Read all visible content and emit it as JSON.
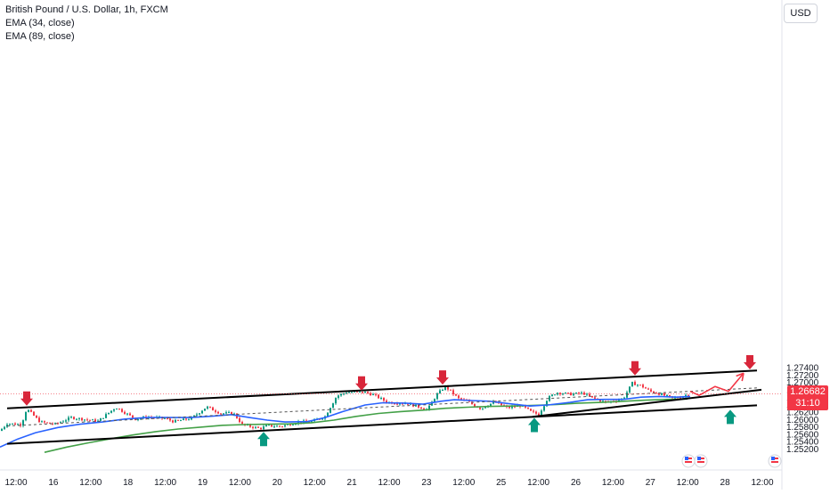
{
  "legend": {
    "title": "British Pound / U.S. Dollar, 1h, FXCM",
    "ema_fast": "EMA (34, close)",
    "ema_slow": "EMA (89, close)"
  },
  "currency_button": "USD",
  "last_price": {
    "value": "1.26682",
    "countdown": "31:10"
  },
  "colors": {
    "up": "#089981",
    "down": "#f23645",
    "ema_fast": "#2962ff",
    "ema_slow": "#43a047",
    "trendline": "#000000",
    "price_tag": "#f23645"
  },
  "chart_data": {
    "type": "candlestick",
    "symbol": "British Pound / U.S. Dollar",
    "timeframe": "1h",
    "x_ticks": [
      "12:00",
      "16",
      "12:00",
      "18",
      "12:00",
      "19",
      "12:00",
      "20",
      "12:00",
      "21",
      "12:00",
      "23",
      "12:00",
      "25",
      "12:00",
      "26",
      "12:00",
      "27",
      "12:00",
      "28",
      "12:00"
    ],
    "y_ticks": [
      1.252,
      1.254,
      1.256,
      1.258,
      1.26,
      1.262,
      1.264,
      1.266,
      1.268,
      1.27,
      1.272,
      1.274
    ],
    "y_tick_labels": [
      "1.25200",
      "1.25400",
      "1.25600",
      "1.25800",
      "1.26000",
      "1.26200",
      "1.26400",
      "1.26600",
      "1.26800",
      "1.27000",
      "1.27200",
      "1.27400"
    ],
    "ylim": [
      1.2513,
      1.2758
    ],
    "ema_fast_name": "EMA (34, close)",
    "ema_slow_name": "EMA (89, close)",
    "candle_path": [
      [
        0,
        1.2568
      ],
      [
        8,
        1.2588
      ],
      [
        24,
        1.2585
      ],
      [
        30,
        1.2628
      ],
      [
        45,
        1.2592
      ],
      [
        62,
        1.2586
      ],
      [
        80,
        1.2604
      ],
      [
        110,
        1.2594
      ],
      [
        130,
        1.2632
      ],
      [
        152,
        1.26
      ],
      [
        165,
        1.2605
      ],
      [
        185,
        1.2602
      ],
      [
        195,
        1.2593
      ],
      [
        215,
        1.2602
      ],
      [
        232,
        1.2633
      ],
      [
        248,
        1.2615
      ],
      [
        262,
        1.2616
      ],
      [
        272,
        1.2585
      ],
      [
        292,
        1.2574
      ],
      [
        300,
        1.2582
      ],
      [
        315,
        1.258
      ],
      [
        335,
        1.2592
      ],
      [
        350,
        1.2593
      ],
      [
        365,
        1.2607
      ],
      [
        378,
        1.2662
      ],
      [
        390,
        1.2673
      ],
      [
        410,
        1.2672
      ],
      [
        420,
        1.2665
      ],
      [
        435,
        1.2645
      ],
      [
        455,
        1.2643
      ],
      [
        472,
        1.2632
      ],
      [
        480,
        1.2625
      ],
      [
        490,
        1.2665
      ],
      [
        500,
        1.2688
      ],
      [
        515,
        1.2655
      ],
      [
        525,
        1.2647
      ],
      [
        540,
        1.2628
      ],
      [
        555,
        1.2646
      ],
      [
        570,
        1.263
      ],
      [
        585,
        1.2637
      ],
      [
        596,
        1.262
      ],
      [
        605,
        1.2612
      ],
      [
        615,
        1.2656
      ],
      [
        625,
        1.2672
      ],
      [
        640,
        1.2667
      ],
      [
        655,
        1.267
      ],
      [
        665,
        1.2657
      ],
      [
        680,
        1.2645
      ],
      [
        692,
        1.265
      ],
      [
        700,
        1.2656
      ],
      [
        710,
        1.2697
      ],
      [
        720,
        1.269
      ],
      [
        730,
        1.2675
      ],
      [
        742,
        1.2667
      ],
      [
        755,
        1.2656
      ],
      [
        765,
        1.2661
      ],
      [
        775,
        1.2668
      ]
    ],
    "ema_fast": [
      [
        0,
        1.2524
      ],
      [
        20,
        1.2546
      ],
      [
        40,
        1.2563
      ],
      [
        65,
        1.2577
      ],
      [
        90,
        1.2586
      ],
      [
        115,
        1.2592
      ],
      [
        140,
        1.26
      ],
      [
        165,
        1.2604
      ],
      [
        190,
        1.2604
      ],
      [
        215,
        1.2604
      ],
      [
        240,
        1.2608
      ],
      [
        260,
        1.2612
      ],
      [
        280,
        1.2604
      ],
      [
        300,
        1.2597
      ],
      [
        320,
        1.2592
      ],
      [
        345,
        1.2593
      ],
      [
        365,
        1.2604
      ],
      [
        385,
        1.262
      ],
      [
        410,
        1.2638
      ],
      [
        430,
        1.2644
      ],
      [
        455,
        1.2643
      ],
      [
        475,
        1.264
      ],
      [
        495,
        1.2648
      ],
      [
        510,
        1.2652
      ],
      [
        530,
        1.265
      ],
      [
        550,
        1.2648
      ],
      [
        570,
        1.2642
      ],
      [
        595,
        1.2635
      ],
      [
        615,
        1.2638
      ],
      [
        640,
        1.2645
      ],
      [
        660,
        1.2652
      ],
      [
        680,
        1.2653
      ],
      [
        700,
        1.2653
      ],
      [
        720,
        1.2659
      ],
      [
        740,
        1.2661
      ],
      [
        760,
        1.2659
      ],
      [
        775,
        1.2661
      ]
    ],
    "ema_slow": [
      [
        50,
        1.251
      ],
      [
        75,
        1.2524
      ],
      [
        100,
        1.2536
      ],
      [
        125,
        1.2547
      ],
      [
        150,
        1.2557
      ],
      [
        175,
        1.2566
      ],
      [
        200,
        1.2573
      ],
      [
        225,
        1.2578
      ],
      [
        250,
        1.2583
      ],
      [
        275,
        1.2585
      ],
      [
        300,
        1.2586
      ],
      [
        325,
        1.2587
      ],
      [
        350,
        1.259
      ],
      [
        375,
        1.2597
      ],
      [
        400,
        1.2607
      ],
      [
        425,
        1.2615
      ],
      [
        450,
        1.262
      ],
      [
        475,
        1.2624
      ],
      [
        500,
        1.2629
      ],
      [
        525,
        1.2632
      ],
      [
        550,
        1.2634
      ],
      [
        575,
        1.2635
      ],
      [
        600,
        1.2637
      ],
      [
        625,
        1.2639
      ],
      [
        650,
        1.2643
      ],
      [
        675,
        1.2645
      ],
      [
        700,
        1.2648
      ],
      [
        725,
        1.2651
      ],
      [
        750,
        1.2653
      ],
      [
        772,
        1.2654
      ]
    ],
    "trendlines": {
      "channel_upper": [
        [
          8,
          1.2629
        ],
        [
          850,
          1.2731
        ]
      ],
      "channel_lower": [
        [
          8,
          1.2533
        ],
        [
          850,
          1.2637
        ]
      ],
      "channel_mid": [
        [
          8,
          1.2581
        ],
        [
          850,
          1.2684
        ]
      ],
      "support": [
        [
          598,
          1.2606
        ],
        [
          855,
          1.2679
        ]
      ]
    },
    "projection": [
      [
        775,
        1.2675
      ],
      [
        785,
        1.2664
      ],
      [
        803,
        1.2688
      ],
      [
        818,
        1.2675
      ],
      [
        835,
        1.2724
      ]
    ],
    "down_arrows_at": [
      [
        30,
        1.2636
      ],
      [
        406,
        1.2677
      ],
      [
        497,
        1.2693
      ],
      [
        713,
        1.2718
      ],
      [
        842,
        1.2734
      ]
    ],
    "up_arrows_at": [
      [
        296,
        1.2565
      ],
      [
        600,
        1.2603
      ],
      [
        820,
        1.2625
      ]
    ]
  }
}
